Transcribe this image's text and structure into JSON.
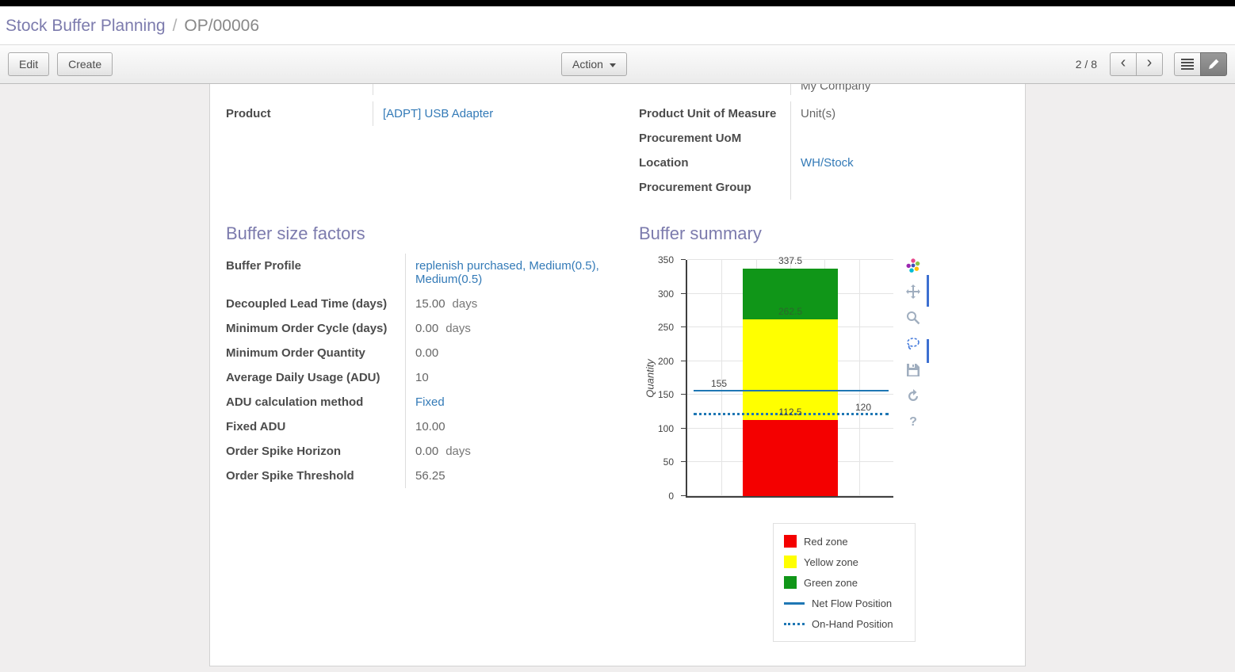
{
  "breadcrumb": {
    "parent": "Stock Buffer Planning",
    "separator": "/",
    "current": "OP/00006"
  },
  "toolbar": {
    "edit_label": "Edit",
    "create_label": "Create",
    "action_label": "Action",
    "pager_text": "2 / 8",
    "prev_glyph": "‹",
    "next_glyph": "›"
  },
  "fields": {
    "left": [
      {
        "label": "Product",
        "value": "[ADPT] USB Adapter",
        "is_link": true,
        "suffix": ""
      }
    ],
    "right_clipped_value": "My Company",
    "right": [
      {
        "label": "Product Unit of Measure",
        "value": "Unit(s)",
        "is_link": false,
        "suffix": ""
      },
      {
        "label": "Procurement UoM",
        "value": "",
        "is_link": false,
        "suffix": ""
      },
      {
        "label": "Location",
        "value": "WH/Stock",
        "is_link": true,
        "suffix": ""
      },
      {
        "label": "Procurement Group",
        "value": "",
        "is_link": false,
        "suffix": ""
      }
    ]
  },
  "buffer_factors": {
    "title": "Buffer size factors",
    "rows": [
      {
        "label": "Buffer Profile",
        "value": "replenish purchased, Medium(0.5), Medium(0.5)",
        "is_link": true,
        "suffix": ""
      },
      {
        "label": "Decoupled Lead Time (days)",
        "value": "15.00",
        "is_link": false,
        "suffix": "days"
      },
      {
        "label": "Minimum Order Cycle (days)",
        "value": "0.00",
        "is_link": false,
        "suffix": "days"
      },
      {
        "label": "Minimum Order Quantity",
        "value": "0.00",
        "is_link": false,
        "suffix": ""
      },
      {
        "label": "Average Daily Usage (ADU)",
        "value": "10",
        "is_link": false,
        "suffix": ""
      },
      {
        "label": "ADU calculation method",
        "value": "Fixed",
        "is_link": true,
        "suffix": ""
      },
      {
        "label": "Fixed ADU",
        "value": "10.00",
        "is_link": false,
        "suffix": ""
      },
      {
        "label": "Order Spike Horizon",
        "value": "0.00",
        "is_link": false,
        "suffix": "days"
      },
      {
        "label": "Order Spike Threshold",
        "value": "56.25",
        "is_link": false,
        "suffix": ""
      }
    ]
  },
  "buffer_summary": {
    "title": "Buffer summary"
  },
  "chart_data": {
    "type": "bar",
    "title": "",
    "xlabel": "",
    "ylabel": "Quantity",
    "ylim": [
      0,
      350
    ],
    "yticks": [
      0,
      50,
      100,
      150,
      200,
      250,
      300,
      350
    ],
    "grid": true,
    "zones": [
      {
        "name": "Red zone",
        "from": 0,
        "to": 112.5,
        "color": "#f40000"
      },
      {
        "name": "Yellow zone",
        "from": 112.5,
        "to": 262.5,
        "color": "#ffff00"
      },
      {
        "name": "Green zone",
        "from": 262.5,
        "to": 337.5,
        "color": "#109618"
      }
    ],
    "lines": [
      {
        "name": "Net Flow Position",
        "value": 155,
        "style": "solid",
        "color": "#1f77b4"
      },
      {
        "name": "On-Hand Position",
        "value": 120,
        "style": "dotted",
        "color": "#1f77b4"
      }
    ],
    "annotations": [
      {
        "text": "337.5",
        "value": 337.5,
        "anchor": "center",
        "color": "#444444"
      },
      {
        "text": "262.5",
        "value": 262.5,
        "anchor": "center",
        "color": "#2d662d"
      },
      {
        "text": "155",
        "value": 155,
        "anchor": "left",
        "color": "#444444"
      },
      {
        "text": "112.5",
        "value": 112.5,
        "anchor": "center",
        "color": "#444444"
      },
      {
        "text": "120",
        "value": 120,
        "anchor": "right",
        "color": "#444444"
      }
    ],
    "legend_position": "bottom-right",
    "legend": [
      {
        "label": "Red zone",
        "marker": "square",
        "color": "#f40000"
      },
      {
        "label": "Yellow zone",
        "marker": "square",
        "color": "#ffff00"
      },
      {
        "label": "Green zone",
        "marker": "square",
        "color": "#109618"
      },
      {
        "label": "Net Flow Position",
        "marker": "line",
        "color": "#1f77b4"
      },
      {
        "label": "On-Hand Position",
        "marker": "dotted",
        "color": "#1f77b4"
      }
    ]
  },
  "icons": {
    "help_glyph": "?"
  }
}
